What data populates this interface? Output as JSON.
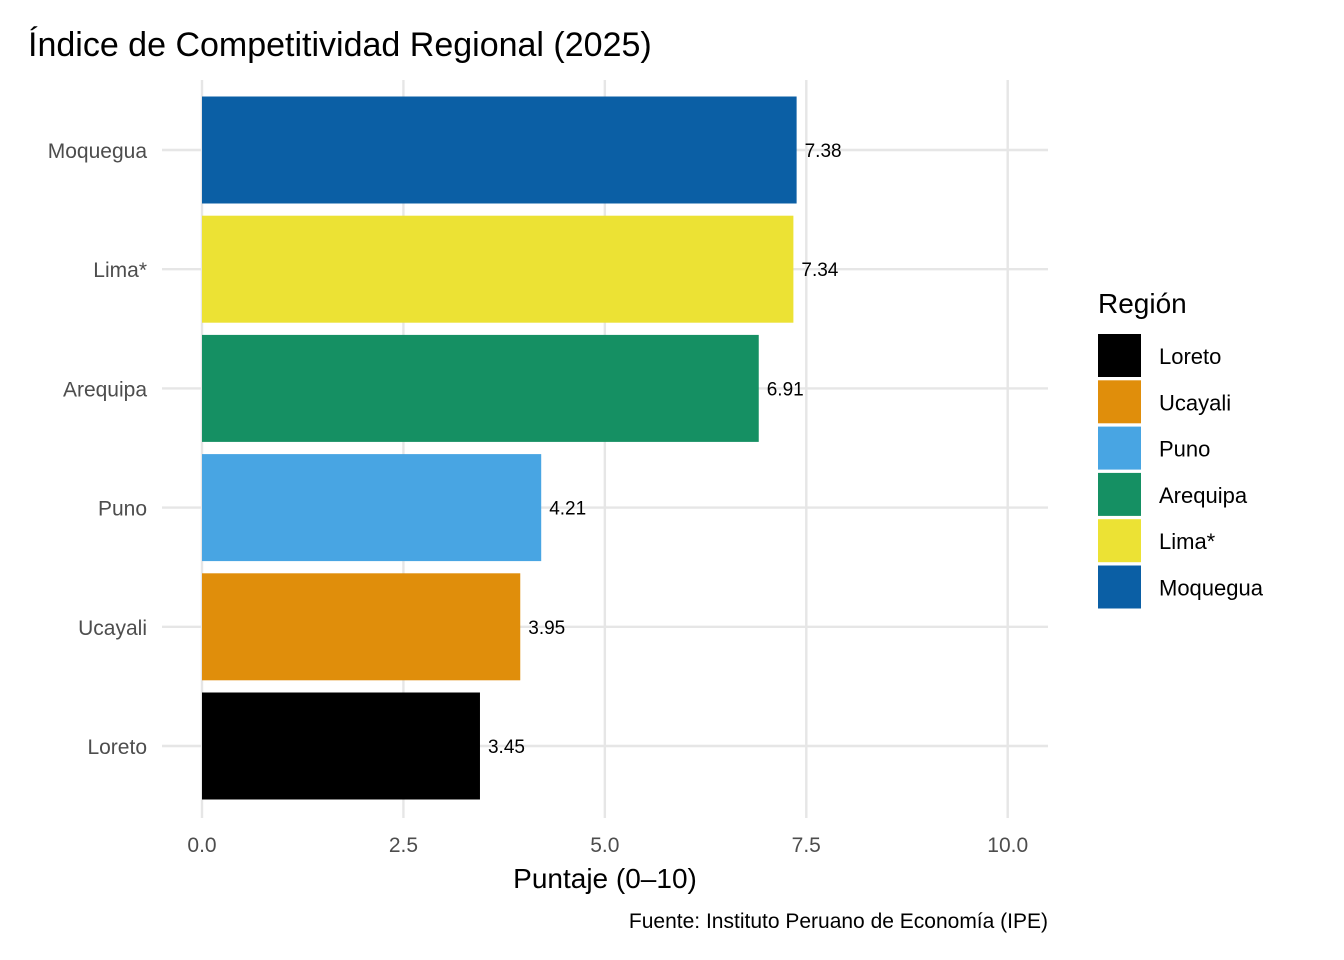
{
  "chart_data": {
    "type": "bar",
    "orientation": "horizontal",
    "title": "Índice de Competitividad Regional (2025)",
    "xlabel": "Puntaje (0–10)",
    "ylabel": "",
    "caption": "Fuente: Instituto Peruano de Economía (IPE)",
    "xlim": [
      0,
      10.5
    ],
    "x_ticks": [
      0,
      2.5,
      5,
      7.5,
      10
    ],
    "x_tick_labels": [
      "0.0",
      "2.5",
      "5.0",
      "7.5",
      "10.0"
    ],
    "grid": true,
    "categories": [
      "Moquegua",
      "Lima*",
      "Arequipa",
      "Puno",
      "Ucayali",
      "Loreto"
    ],
    "values": [
      7.38,
      7.34,
      6.91,
      4.21,
      3.95,
      3.45
    ],
    "value_labels": [
      "7.38",
      "7.34",
      "6.91",
      "4.21",
      "3.95",
      "3.45"
    ],
    "colors": [
      "#0B5FA5",
      "#ECE234",
      "#159063",
      "#48A5E3",
      "#E08E0B",
      "#000000"
    ],
    "legend": {
      "title": "Región",
      "placement": "right",
      "items": [
        {
          "label": "Loreto",
          "color": "#000000"
        },
        {
          "label": "Ucayali",
          "color": "#E08E0B"
        },
        {
          "label": "Puno",
          "color": "#48A5E3"
        },
        {
          "label": "Arequipa",
          "color": "#159063"
        },
        {
          "label": "Lima*",
          "color": "#ECE234"
        },
        {
          "label": "Moquegua",
          "color": "#0B5FA5"
        }
      ]
    }
  }
}
